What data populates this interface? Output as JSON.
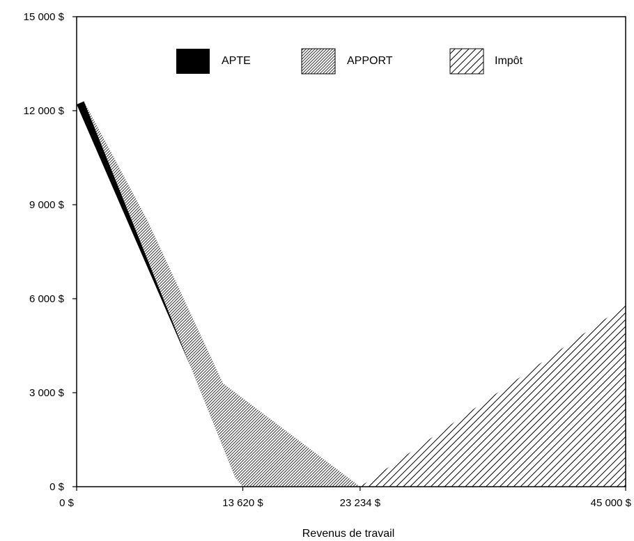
{
  "chart_data": {
    "type": "area",
    "xlabel": "Revenus de travail",
    "ylabel": "",
    "title": "",
    "xlim": [
      0,
      45000
    ],
    "ylim": [
      0,
      15000
    ],
    "x_ticks": [
      {
        "value": 0,
        "label": "0 $"
      },
      {
        "value": 13620,
        "label": "13 620 $"
      },
      {
        "value": 23234,
        "label": "23 234 $"
      },
      {
        "value": 45000,
        "label": "45 000 $"
      }
    ],
    "y_ticks": [
      {
        "value": 0,
        "label": "0 $"
      },
      {
        "value": 3000,
        "label": "3 000 $"
      },
      {
        "value": 6000,
        "label": "6 000 $"
      },
      {
        "value": 9000,
        "label": "9 000 $"
      },
      {
        "value": 12000,
        "label": "12 000 $"
      },
      {
        "value": 15000,
        "label": "15 000 $"
      }
    ],
    "grid": false,
    "legend_position": "top",
    "series": [
      {
        "name": "APTE",
        "fill": "solid",
        "color": "#000000",
        "points": [
          [
            0,
            12200
          ],
          [
            600,
            12300
          ],
          [
            13000,
            300
          ],
          [
            13620,
            0
          ]
        ]
      },
      {
        "name": "APPORT",
        "fill": "dense-hatch",
        "color": "#000000",
        "points": [
          [
            600,
            12300
          ],
          [
            5800,
            8500
          ],
          [
            12000,
            3300
          ],
          [
            23234,
            0
          ],
          [
            13620,
            0
          ],
          [
            13000,
            300
          ]
        ]
      },
      {
        "name": "Impôt",
        "fill": "diagonal-hatch",
        "color": "#000000",
        "points": [
          [
            23234,
            0
          ],
          [
            45000,
            5800
          ],
          [
            45000,
            0
          ]
        ]
      }
    ]
  }
}
